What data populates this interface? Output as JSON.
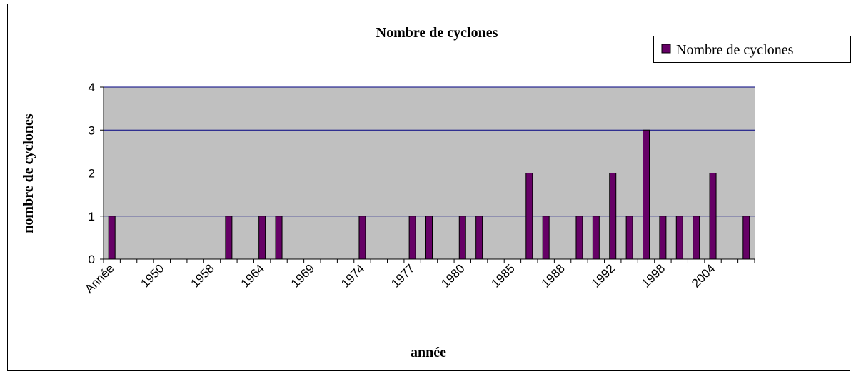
{
  "chart_data": {
    "type": "bar",
    "title": "Nombre de cyclones",
    "xlabel": "année",
    "ylabel": "nombre de cyclones",
    "categories": [
      "Année",
      null,
      null,
      "1950",
      null,
      null,
      "1958",
      null,
      null,
      "1964",
      null,
      null,
      "1969",
      null,
      null,
      "1974",
      null,
      null,
      "1977",
      null,
      null,
      "1980",
      null,
      null,
      "1985",
      null,
      null,
      "1988",
      null,
      null,
      "1992",
      null,
      null,
      "1998",
      null,
      null,
      "2004",
      null,
      null
    ],
    "series": [
      {
        "name": "Nombre de cyclones",
        "color": "#660066",
        "values": [
          1,
          0,
          0,
          0,
          0,
          0,
          0,
          1,
          0,
          1,
          1,
          0,
          0,
          0,
          0,
          1,
          0,
          0,
          1,
          1,
          0,
          1,
          1,
          0,
          0,
          2,
          1,
          0,
          1,
          1,
          2,
          1,
          3,
          1,
          1,
          1,
          2,
          0,
          1
        ]
      }
    ],
    "ylim": [
      0,
      4
    ],
    "yticks": [
      0,
      1,
      2,
      3,
      4
    ],
    "grid": true,
    "legend": "top-right"
  }
}
